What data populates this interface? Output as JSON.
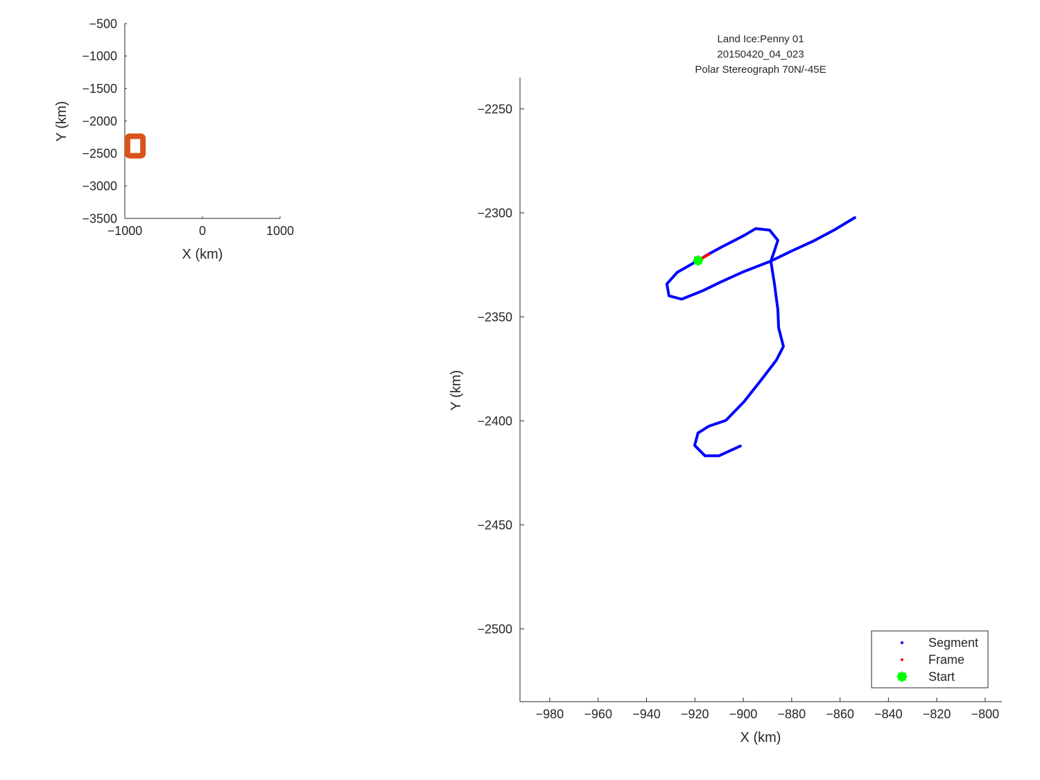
{
  "chart_data": [
    {
      "type": "line",
      "xlabel": "X (km)",
      "ylabel": "Y (km)",
      "xlim": [
        -1000,
        1000
      ],
      "ylim": [
        -3500,
        -500
      ],
      "xticks": [
        -1000,
        0,
        1000
      ],
      "yticks": [
        -500,
        -1000,
        -1500,
        -2000,
        -2500,
        -3000,
        -3500
      ],
      "grid": false,
      "extent_box": {
        "x": [
          -992,
          -793
        ],
        "y": [
          -2535,
          -2235
        ],
        "color": "#D95319"
      }
    },
    {
      "type": "line",
      "title": [
        "Land Ice:Penny 01",
        "20150420_04_023",
        "Polar Stereograph 70N/-45E"
      ],
      "xlabel": "X (km)",
      "ylabel": "Y (km)",
      "xlim": [
        -992.3,
        -793.1
      ],
      "ylim": [
        -2535,
        -2235
      ],
      "xticks": [
        -980,
        -960,
        -940,
        -920,
        -900,
        -880,
        -860,
        -840,
        -820,
        -800
      ],
      "yticks": [
        -2250,
        -2300,
        -2350,
        -2400,
        -2450,
        -2500
      ],
      "grid": false,
      "legend_position": "bottom-right",
      "series": [
        {
          "name": "Segment",
          "color": "#0000FF",
          "x": [
            -853.9,
            -862.5,
            -871.1,
            -880.5,
            -888.6,
            -899.7,
            -909.2,
            -916.9,
            -925.5,
            -930.7,
            -931.6,
            -927.3,
            -918.7,
            -914.9,
            -909.2,
            -899.7,
            -894.9,
            -889.1,
            -885.7,
            -887.1,
            -888.6,
            -887.1,
            -885.7,
            -885.4,
            -883.4,
            -886.3,
            -892.9,
            -899.7,
            -907.2,
            -914.1,
            -918.7,
            -920.1,
            -915.8,
            -910.1,
            -901.2
          ],
          "y": [
            -2302.3,
            -2308.3,
            -2313.6,
            -2318.6,
            -2323.2,
            -2328.2,
            -2333.2,
            -2337.5,
            -2341.5,
            -2339.9,
            -2334.2,
            -2328.6,
            -2322.9,
            -2320.2,
            -2316.6,
            -2310.9,
            -2307.6,
            -2308.3,
            -2313.2,
            -2318.2,
            -2323.2,
            -2334.2,
            -2346.5,
            -2355.2,
            -2364.2,
            -2370.8,
            -2380.8,
            -2390.8,
            -2399.8,
            -2402.5,
            -2405.8,
            -2411.8,
            -2416.8,
            -2416.8,
            -2412.1
          ]
        },
        {
          "name": "Frame",
          "color": "#FF0000",
          "x": [
            -918.7,
            -914.3
          ],
          "y": [
            -2322.9,
            -2320.0
          ]
        },
        {
          "name": "Start",
          "color": "#00FF00",
          "x": [
            -918.7
          ],
          "y": [
            -2322.9
          ]
        }
      ]
    }
  ]
}
